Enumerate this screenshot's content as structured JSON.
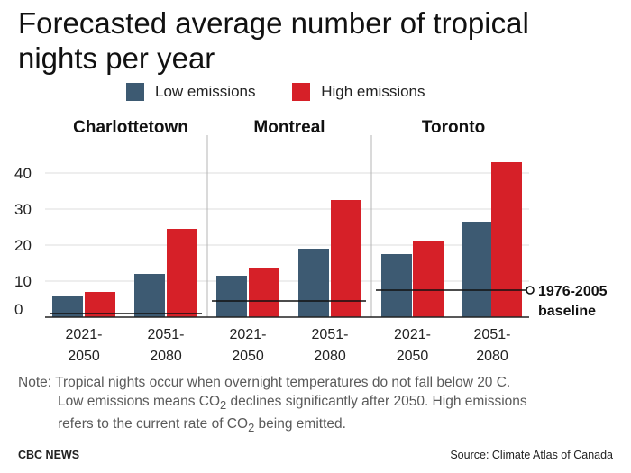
{
  "title": "Forecasted average number of tropical nights per year",
  "legend": {
    "low_label": "Low emissions",
    "high_label": "High emissions",
    "low_color": "#3d5a72",
    "high_color": "#d62028"
  },
  "chart_data": {
    "type": "bar",
    "title": "Forecasted average number of tropical nights per year",
    "panels": [
      {
        "name": "Charlottetown",
        "baseline": 1,
        "groups": [
          {
            "period": [
              "2021-",
              "2050"
            ],
            "low": 6,
            "high": 7
          },
          {
            "period": [
              "2051-",
              "2080"
            ],
            "low": 12,
            "high": 24.5
          }
        ]
      },
      {
        "name": "Montreal",
        "baseline": 4.5,
        "groups": [
          {
            "period": [
              "2021-",
              "2050"
            ],
            "low": 11.5,
            "high": 13.5
          },
          {
            "period": [
              "2051-",
              "2080"
            ],
            "low": 19,
            "high": 32.5
          }
        ]
      },
      {
        "name": "Toronto",
        "baseline": 7.5,
        "groups": [
          {
            "period": [
              "2021-",
              "2050"
            ],
            "low": 17.5,
            "high": 21
          },
          {
            "period": [
              "2051-",
              "2080"
            ],
            "low": 26.5,
            "high": 43
          }
        ]
      }
    ],
    "yticks": [
      0,
      10,
      20,
      30,
      40
    ],
    "ylim": [
      0,
      45
    ],
    "grid": true,
    "baseline_label": [
      "1976-2005",
      "baseline"
    ],
    "series": [
      {
        "name": "Low emissions",
        "color": "#3d5a72"
      },
      {
        "name": "High emissions",
        "color": "#d62028"
      }
    ]
  },
  "note": {
    "line1": "Note: Tropical nights occur when overnight temperatures do not fall below 20 C.",
    "line2a": "Low emissions means CO",
    "line2sub": "2",
    "line2b": " declines significantly after 2050. High emissions",
    "line3a": "refers to the current rate of CO",
    "line3sub": "2",
    "line3b": " being emitted."
  },
  "footer": {
    "left": "CBC NEWS",
    "right": "Source: Climate Atlas of Canada"
  }
}
